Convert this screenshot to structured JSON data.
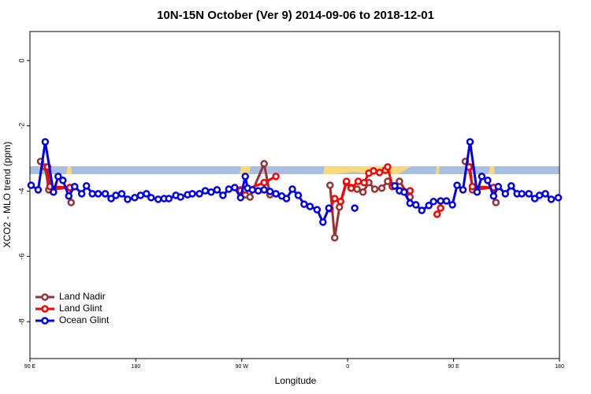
{
  "chart_data": {
    "type": "line",
    "title": "10N-15N October (Ver 9)   2014-09-06 to 2018-12-01",
    "x_label": "Longitude",
    "y_label": "XCO2 - MLO trend (ppm)",
    "xlim": [
      90,
      540
    ],
    "xticks": [
      {
        "value": 90,
        "label": "90 E"
      },
      {
        "value": 180,
        "label": "180"
      },
      {
        "value": 270,
        "label": "90 W"
      },
      {
        "value": 360,
        "label": "0"
      },
      {
        "value": 450,
        "label": "90 E"
      },
      {
        "value": 540,
        "label": "180"
      }
    ],
    "ylim": [
      -9.13,
      0.89
    ],
    "yticks": [
      0,
      -2,
      -4,
      -6,
      -8
    ],
    "legend": "bottom-left",
    "series": [
      {
        "name": "Land Nadir",
        "color": "#993333",
        "x": [
          99,
          103,
          106,
          124,
          125,
          200,
          269,
          273,
          277,
          289,
          294,
          340,
          345,
          349,
          353,
          359,
          363,
          368,
          373,
          378,
          383,
          389,
          394,
          398,
          404,
          413,
          440,
          460,
          464,
          466,
          484,
          486
        ],
        "values": [
          -3.09,
          -3.26,
          -3.96,
          -3.89,
          -4.35,
          null,
          -3.96,
          -4.11,
          -4.18,
          -3.16,
          -4.11,
          null,
          -3.82,
          -5.43,
          -4.49,
          -3.74,
          -3.89,
          -3.94,
          -4.03,
          -3.74,
          -3.94,
          -3.91,
          -3.7,
          -3.84,
          -3.7,
          -4.18,
          null,
          -3.09,
          -3.26,
          -3.96,
          -3.89,
          -4.35
        ]
      },
      {
        "name": "Land Glint",
        "color": "#ff0000",
        "x": [
          105,
          107,
          124,
          200,
          269,
          273,
          289,
          299,
          340,
          345,
          349,
          354,
          359,
          363,
          369,
          374,
          378,
          382,
          387,
          392,
          394,
          398,
          413,
          430,
          436,
          439,
          460,
          463,
          466,
          484
        ],
        "values": [
          -3.26,
          -3.86,
          -3.89,
          null,
          -3.99,
          -3.96,
          -3.74,
          -3.55,
          null,
          -4.54,
          -4.23,
          -4.32,
          -3.7,
          -3.91,
          -3.7,
          -3.74,
          -3.45,
          -3.38,
          -3.43,
          -3.36,
          -3.26,
          -3.86,
          -3.99,
          null,
          -4.71,
          -4.52,
          null,
          -3.26,
          -3.86,
          -3.89
        ]
      },
      {
        "name": "Ocean Glint",
        "color": "#0000ee",
        "x": [
          91,
          97,
          103,
          110,
          114,
          118,
          123,
          128,
          134,
          138,
          143,
          148,
          154,
          159,
          163,
          168,
          173,
          179,
          184,
          189,
          193,
          199,
          204,
          208,
          214,
          218,
          224,
          228,
          234,
          239,
          244,
          249,
          254,
          259,
          264,
          269,
          273,
          275,
          279,
          284,
          289,
          294,
          299,
          304,
          308,
          313,
          318,
          323,
          328,
          334,
          339,
          344,
          355,
          366,
          383,
          400,
          404,
          408,
          413,
          418,
          423,
          429,
          433,
          439,
          444,
          449,
          453,
          458,
          464,
          470,
          474,
          479,
          484,
          488,
          494,
          499,
          504,
          508,
          514,
          519,
          523,
          528,
          533,
          539
        ],
        "values": [
          -3.82,
          -3.96,
          -2.49,
          -4.03,
          -3.55,
          -3.67,
          -4.15,
          -3.86,
          -4.08,
          -3.84,
          -4.08,
          -4.08,
          -4.08,
          -4.23,
          -4.13,
          -4.08,
          -4.25,
          -4.2,
          -4.13,
          -4.08,
          -4.2,
          -4.25,
          -4.23,
          -4.23,
          -4.13,
          -4.18,
          -4.11,
          -4.08,
          -4.08,
          -3.99,
          -4.03,
          -3.96,
          -4.13,
          -3.94,
          -3.89,
          -4.2,
          -3.55,
          -3.91,
          -3.96,
          -3.99,
          -3.96,
          -4.01,
          -4.08,
          -4.15,
          -4.23,
          -3.94,
          -4.13,
          -4.4,
          -4.47,
          -4.57,
          -4.95,
          -4.52,
          null,
          -4.52,
          null,
          -3.84,
          -3.99,
          -4.03,
          -4.37,
          -4.42,
          -4.59,
          -4.44,
          -4.32,
          -4.3,
          -4.3,
          -4.42,
          -3.82,
          -3.96,
          -2.49,
          -4.03,
          -3.55,
          -3.67,
          -4.15,
          -3.86,
          -4.08,
          -3.84,
          -4.08,
          -4.08,
          -4.08,
          -4.23,
          -4.13,
          -4.08,
          -4.25,
          -4.2
        ]
      }
    ]
  }
}
